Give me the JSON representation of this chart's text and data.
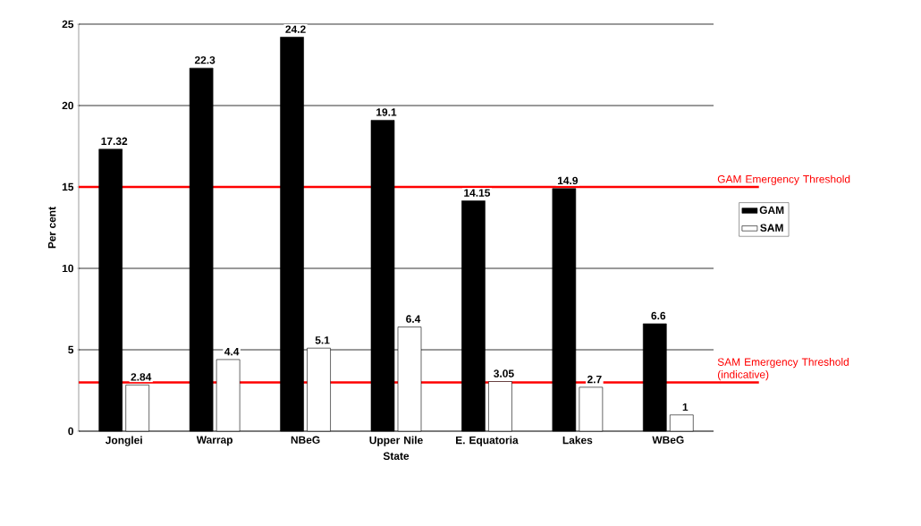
{
  "chart_data": {
    "type": "bar",
    "xlabel": "State",
    "ylabel": "Per cent",
    "categories": [
      "Jonglei",
      "Warrap",
      "NBeG",
      "Upper Nile",
      "E. Equatoria",
      "Lakes",
      "WBeG"
    ],
    "series": [
      {
        "name": "GAM",
        "color": "#000000",
        "values": [
          17.32,
          22.3,
          24.2,
          19.1,
          14.15,
          14.9,
          6.6
        ]
      },
      {
        "name": "SAM",
        "color": "#ffffff",
        "values": [
          2.84,
          4.4,
          5.1,
          6.4,
          3.05,
          2.7,
          1
        ]
      }
    ],
    "ylim": [
      0,
      25
    ],
    "yticks": [
      0,
      5,
      10,
      15,
      20,
      25
    ],
    "grid": "y",
    "legend": "right",
    "data_labels": true,
    "ref_lines": [
      {
        "axis": "y",
        "value": 15,
        "label": "GAM Emergency Threshold",
        "color": "#ff0000"
      },
      {
        "axis": "y",
        "value": 3,
        "label": "SAM Emergency Threshold (indicative)",
        "color": "#ff0000"
      }
    ]
  }
}
